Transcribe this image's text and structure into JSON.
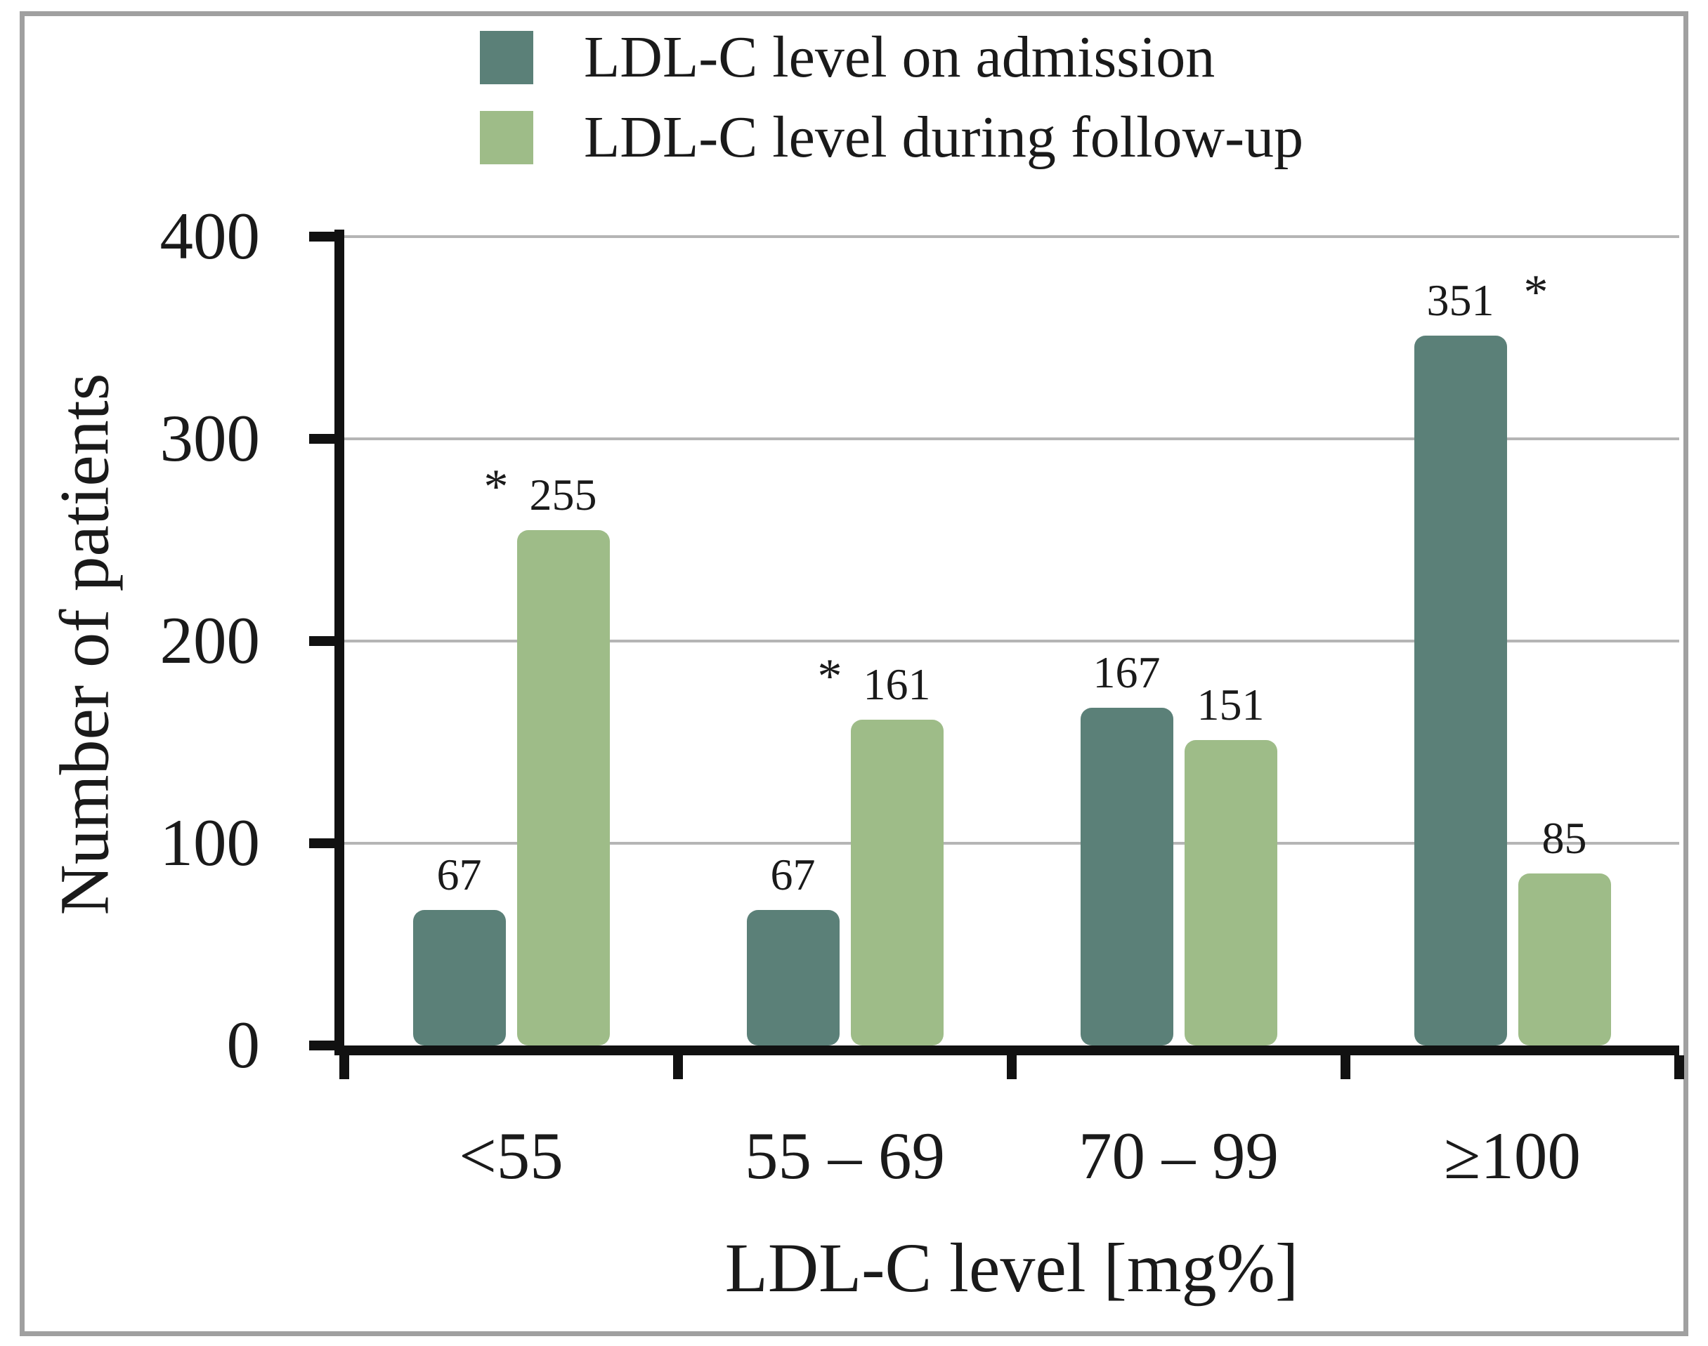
{
  "legend": {
    "items": [
      {
        "label": "LDL-C level on admission",
        "color": "#5b8078"
      },
      {
        "label": "LDL-C level during follow-up",
        "color": "#9ebc88"
      }
    ]
  },
  "chart_data": {
    "type": "bar",
    "title": "",
    "categories": [
      "<55",
      "55 – 69",
      "70 – 99",
      "≥100"
    ],
    "series": [
      {
        "name": "LDL-C level on admission",
        "color": "#5b8078",
        "values": [
          67,
          67,
          167,
          351
        ],
        "annotations": [
          "",
          "",
          "",
          "right-star"
        ]
      },
      {
        "name": "LDL-C level during follow-up",
        "color": "#9ebc88",
        "values": [
          255,
          161,
          151,
          85
        ],
        "annotations": [
          "left-star",
          "left-star",
          "",
          ""
        ]
      }
    ],
    "significance_marker": "*",
    "xlabel": "LDL-C level [mg%]",
    "ylabel": "Number of patients",
    "ylim": [
      0,
      400
    ],
    "yticks": [
      0,
      100,
      200,
      300,
      400
    ],
    "grid": true,
    "legend_position": "top"
  }
}
